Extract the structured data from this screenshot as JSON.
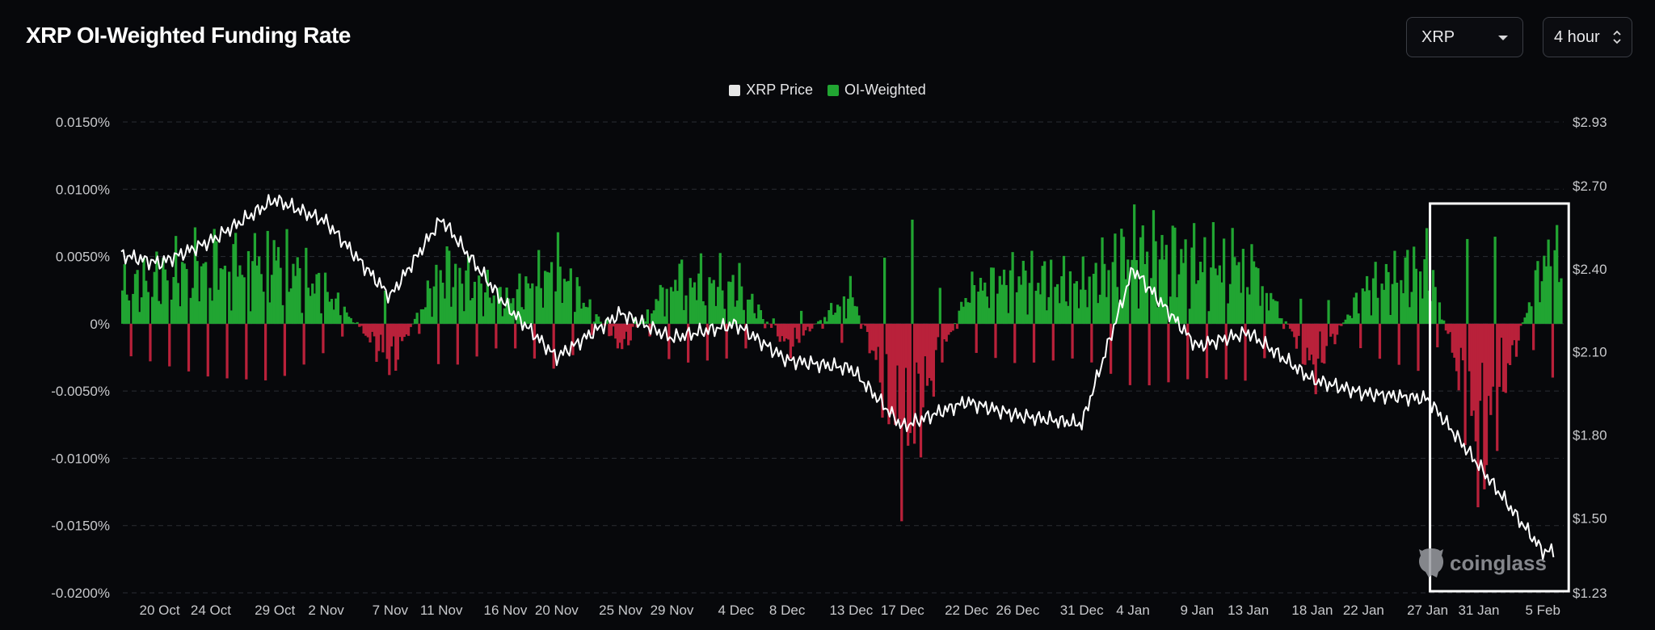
{
  "header": {
    "title": "XRP OI-Weighted Funding Rate",
    "asset_select": {
      "value": "XRP",
      "icon": "chevron-down-icon"
    },
    "interval_select": {
      "value": "4 hour",
      "icon": "up-down-arrows-icon"
    }
  },
  "legend": [
    {
      "label": "XRP Price",
      "color": "#e6e6e6"
    },
    {
      "label": "OI-Weighted",
      "color": "#21a532"
    }
  ],
  "watermark": {
    "text": "coinglass",
    "icon": "coinglass-logo-icon"
  },
  "colors": {
    "positive": "#21a532",
    "negative": "#b9213a",
    "price_line": "#ffffff",
    "grid": "#2a2c33",
    "highlight_box": "#ffffff"
  },
  "chart_data": {
    "type": "bar+line",
    "title": "XRP OI-Weighted Funding Rate",
    "left_axis": {
      "unit": "%",
      "ylim": [
        -0.02,
        0.015
      ],
      "ticks": [
        "0.0150%",
        "0.0100%",
        "0.0050%",
        "0%",
        "-0.0050%",
        "-0.0100%",
        "-0.0150%",
        "-0.0200%"
      ]
    },
    "right_axis": {
      "unit": "$",
      "ylim": [
        1.23,
        2.93
      ],
      "ticks": [
        "$2.93",
        "$2.70",
        "$2.40",
        "$2.10",
        "$1.80",
        "$1.50",
        "$1.23"
      ]
    },
    "x_ticks": [
      "20 Oct",
      "24 Oct",
      "29 Oct",
      "2 Nov",
      "7 Nov",
      "11 Nov",
      "16 Nov",
      "20 Nov",
      "25 Nov",
      "29 Nov",
      "4 Dec",
      "8 Dec",
      "13 Dec",
      "17 Dec",
      "22 Dec",
      "26 Dec",
      "31 Dec",
      "4 Jan",
      "9 Jan",
      "13 Jan",
      "18 Jan",
      "22 Jan",
      "27 Jan",
      "31 Jan",
      "5 Feb"
    ],
    "grid": true,
    "legend_position": "top-center",
    "highlight_range": {
      "from": "27 Jan",
      "to": "5 Feb"
    },
    "series": [
      {
        "name": "OI-Weighted",
        "kind": "area",
        "x": [
          "17 Oct",
          "20 Oct",
          "24 Oct",
          "29 Oct",
          "2 Nov",
          "7 Nov",
          "11 Nov",
          "16 Nov",
          "20 Nov",
          "25 Nov",
          "29 Nov",
          "4 Dec",
          "8 Dec",
          "13 Dec",
          "17 Dec",
          "22 Dec",
          "26 Dec",
          "31 Dec",
          "4 Jan",
          "9 Jan",
          "13 Jan",
          "18 Jan",
          "22 Jan",
          "27 Jan",
          "31 Jan",
          "5 Feb"
        ],
        "values": [
          0.0045,
          0.006,
          0.008,
          0.0085,
          0.004,
          -0.005,
          0.007,
          0.003,
          0.007,
          -0.003,
          0.006,
          0.005,
          -0.003,
          0.004,
          -0.0155,
          0.004,
          0.006,
          0.005,
          0.0095,
          0.008,
          0.0085,
          -0.006,
          0.0045,
          0.0075,
          -0.0165,
          0.008
        ]
      },
      {
        "name": "XRP Price",
        "kind": "line",
        "x": [
          "17 Oct",
          "20 Oct",
          "24 Oct",
          "29 Oct",
          "2 Nov",
          "7 Nov",
          "11 Nov",
          "16 Nov",
          "20 Nov",
          "25 Nov",
          "29 Nov",
          "4 Dec",
          "8 Dec",
          "13 Dec",
          "17 Dec",
          "22 Dec",
          "26 Dec",
          "31 Dec",
          "4 Jan",
          "9 Jan",
          "13 Jan",
          "18 Jan",
          "22 Jan",
          "27 Jan",
          "31 Jan",
          "5 Feb"
        ],
        "values": [
          2.45,
          2.42,
          2.5,
          2.65,
          2.57,
          2.3,
          2.58,
          2.27,
          2.08,
          2.24,
          2.15,
          2.2,
          2.07,
          2.04,
          1.83,
          1.92,
          1.87,
          1.84,
          2.4,
          2.12,
          2.17,
          2.0,
          1.95,
          1.93,
          1.69,
          1.38
        ]
      }
    ]
  }
}
